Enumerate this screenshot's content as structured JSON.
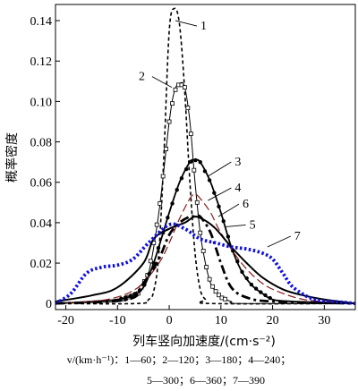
{
  "chart_data": {
    "type": "line",
    "title": "",
    "xlabel": "列车竖向加速度/(cm·s⁻²)",
    "ylabel": "概率密度",
    "xlim": [
      -22,
      36
    ],
    "ylim": [
      -0.003,
      0.148
    ],
    "x_ticks": [
      -20,
      -10,
      0,
      10,
      20,
      30
    ],
    "y_ticks": [
      0,
      0.02,
      0.04,
      0.06,
      0.08,
      0.1,
      0.12,
      0.14
    ],
    "y_tick_labels": [
      "0",
      "0.02",
      "0.04",
      "0.06",
      "0.08",
      "0.10",
      "0.12",
      "0.14"
    ],
    "legend_text": {
      "line1": "v/(km·h⁻¹)：1—60；2—120；3—180；4—240；",
      "line2": "5—300；6—360；7—390"
    },
    "series": [
      {
        "name": "1",
        "speed_kmh": 60,
        "color": "#000000",
        "style": "dashed",
        "x": [
          -22,
          -6,
          -4,
          -3,
          -2,
          -1,
          0,
          1,
          2,
          3,
          4,
          5,
          6,
          7,
          8,
          36
        ],
        "y": [
          0,
          0,
          0.002,
          0.006,
          0.025,
          0.075,
          0.135,
          0.146,
          0.138,
          0.105,
          0.06,
          0.025,
          0.007,
          0.002,
          0,
          0
        ]
      },
      {
        "name": "2",
        "speed_kmh": 120,
        "color": "#000000",
        "style": "solid-square-markers",
        "x": [
          -22,
          -10,
          -8,
          -6,
          -4,
          -2,
          0,
          1,
          2,
          3,
          4,
          5,
          6,
          7,
          8,
          9,
          10,
          12,
          14,
          36
        ],
        "y": [
          0,
          0.001,
          0.003,
          0.005,
          0.015,
          0.045,
          0.09,
          0.105,
          0.109,
          0.107,
          0.09,
          0.06,
          0.035,
          0.02,
          0.01,
          0.006,
          0.003,
          0.001,
          0,
          0
        ]
      },
      {
        "name": "3",
        "speed_kmh": 180,
        "color": "#000000",
        "style": "solid-dot-markers",
        "x": [
          -22,
          -15,
          -10,
          -7,
          -5,
          -3,
          0,
          2,
          4,
          5,
          6,
          8,
          10,
          12,
          14,
          16,
          18,
          20,
          24,
          36
        ],
        "y": [
          0,
          0.001,
          0.002,
          0.004,
          0.008,
          0.02,
          0.045,
          0.06,
          0.07,
          0.071,
          0.07,
          0.06,
          0.045,
          0.028,
          0.016,
          0.009,
          0.005,
          0.002,
          0.001,
          0
        ]
      },
      {
        "name": "4",
        "speed_kmh": 240,
        "color": "#8b1a1a",
        "style": "long-dash",
        "x": [
          -22,
          -12,
          -6,
          -2,
          0,
          2,
          4,
          5,
          6,
          8,
          10,
          14,
          18,
          22,
          26,
          30,
          36
        ],
        "y": [
          0,
          0.002,
          0.008,
          0.02,
          0.03,
          0.042,
          0.052,
          0.054,
          0.052,
          0.045,
          0.035,
          0.02,
          0.01,
          0.005,
          0.002,
          0.001,
          0
        ]
      },
      {
        "name": "5",
        "speed_kmh": 300,
        "color": "#000000",
        "style": "solid",
        "x": [
          -22,
          -15,
          -10,
          -5,
          -3,
          0,
          3,
          5,
          7,
          9,
          12,
          15,
          18,
          22,
          26,
          30,
          36
        ],
        "y": [
          0.001,
          0.004,
          0.008,
          0.02,
          0.032,
          0.037,
          0.04,
          0.043,
          0.041,
          0.037,
          0.028,
          0.02,
          0.013,
          0.007,
          0.004,
          0.002,
          0
        ]
      },
      {
        "name": "6",
        "speed_kmh": 360,
        "color": "#000000",
        "style": "dash-dot",
        "x": [
          -22,
          -8,
          -5,
          -2,
          0,
          2,
          4,
          5,
          6,
          8,
          10,
          12,
          15,
          20,
          36
        ],
        "y": [
          0,
          0.002,
          0.01,
          0.022,
          0.034,
          0.04,
          0.043,
          0.043,
          0.043,
          0.035,
          0.02,
          0.008,
          0.003,
          0.001,
          0
        ]
      },
      {
        "name": "7",
        "speed_kmh": 390,
        "color": "#1010e0",
        "style": "dotted-thick",
        "x": [
          -22,
          -19,
          -16,
          -13,
          -10,
          -7,
          -4,
          0,
          3,
          6,
          9,
          12,
          15,
          18,
          20,
          22,
          24,
          28,
          32,
          36
        ],
        "y": [
          0,
          0.005,
          0.015,
          0.018,
          0.019,
          0.022,
          0.03,
          0.039,
          0.037,
          0.032,
          0.03,
          0.028,
          0.027,
          0.025,
          0.022,
          0.015,
          0.008,
          0.002,
          0.001,
          0
        ]
      }
    ],
    "callouts": [
      {
        "label": "1",
        "series": "1",
        "x": 1.2,
        "y": 0.14
      },
      {
        "label": "2",
        "series": "2",
        "x": 0.5,
        "y": 0.107
      },
      {
        "label": "3",
        "series": "3",
        "x": 7.5,
        "y": 0.063
      },
      {
        "label": "4",
        "series": "4",
        "x": 7.5,
        "y": 0.051
      },
      {
        "label": "6",
        "series": "6",
        "x": 9.5,
        "y": 0.043
      },
      {
        "label": "5",
        "series": "5",
        "x": 11.0,
        "y": 0.038
      },
      {
        "label": "7",
        "series": "7",
        "x": 19.0,
        "y": 0.028
      }
    ]
  }
}
